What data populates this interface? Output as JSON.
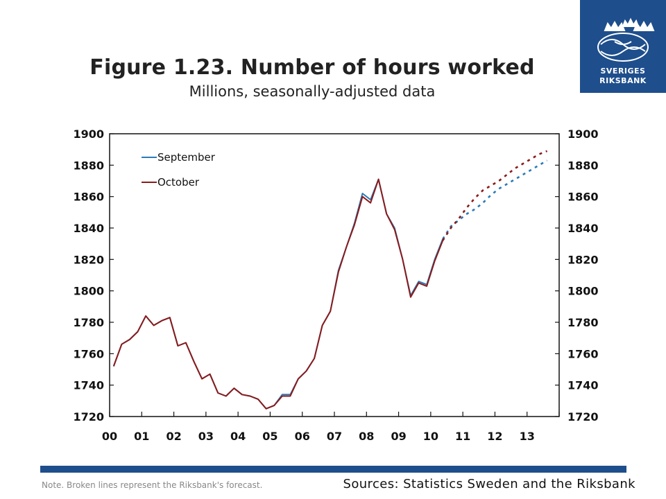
{
  "logo": {
    "text_line1": "SVERIGES",
    "text_line2": "RIKSBANK",
    "color": "#1e4e8c"
  },
  "title": "Figure 1.23.  Number of hours worked",
  "subtitle": "Millions, seasonally-adjusted data",
  "note": "Note. Broken lines represent the Riksbank's forecast.",
  "sources": "Sources: Statistics Sweden and the Riksbank",
  "chart_data": {
    "type": "line",
    "title": "Figure 1.23.  Number of hours worked",
    "subtitle": "Millions, seasonally-adjusted data",
    "ylim": [
      1720,
      1900
    ],
    "yticks": [
      1720,
      1740,
      1760,
      1780,
      1800,
      1820,
      1840,
      1860,
      1880,
      1900
    ],
    "xlim": [
      2000,
      2014
    ],
    "xticks": [
      {
        "value": 2000,
        "label": "00"
      },
      {
        "value": 2001,
        "label": "01"
      },
      {
        "value": 2002,
        "label": "02"
      },
      {
        "value": 2003,
        "label": "03"
      },
      {
        "value": 2004,
        "label": "04"
      },
      {
        "value": 2005,
        "label": "05"
      },
      {
        "value": 2006,
        "label": "06"
      },
      {
        "value": 2007,
        "label": "07"
      },
      {
        "value": 2008,
        "label": "08"
      },
      {
        "value": 2009,
        "label": "09"
      },
      {
        "value": 2010,
        "label": "10"
      },
      {
        "value": 2011,
        "label": "11"
      },
      {
        "value": 2012,
        "label": "12"
      },
      {
        "value": 2013,
        "label": "13"
      }
    ],
    "axes": "left and right, same scale",
    "legend_position": "top-left",
    "grid": false,
    "series": [
      {
        "name": "September",
        "color": "#2a7ab8",
        "x": [
          2000.125,
          2000.375,
          2000.625,
          2000.875,
          2001.125,
          2001.375,
          2001.625,
          2001.875,
          2002.125,
          2002.375,
          2002.625,
          2002.875,
          2003.125,
          2003.375,
          2003.625,
          2003.875,
          2004.125,
          2004.375,
          2004.625,
          2004.875,
          2005.125,
          2005.375,
          2005.625,
          2005.875,
          2006.125,
          2006.375,
          2006.625,
          2006.875,
          2007.125,
          2007.375,
          2007.625,
          2007.875,
          2008.125,
          2008.375,
          2008.625,
          2008.875,
          2009.125,
          2009.375,
          2009.625,
          2009.875,
          2010.125,
          2010.375
        ],
        "values": [
          1752,
          1766,
          1769,
          1774,
          1784,
          1778,
          1781,
          1783,
          1765,
          1767,
          1755,
          1744,
          1747,
          1735,
          1733,
          1738,
          1734,
          1733,
          1731,
          1725,
          1727,
          1734,
          1734,
          1744,
          1749,
          1757,
          1778,
          1787,
          1813,
          1828,
          1843,
          1862,
          1858,
          1871,
          1849,
          1840,
          1820,
          1797,
          1806,
          1804,
          1820,
          1833
        ],
        "forecast_x": [
          2010.375,
          2010.625,
          2010.875,
          2011.125,
          2011.375,
          2011.625,
          2011.875,
          2012.125,
          2012.375,
          2012.625,
          2012.875,
          2013.125,
          2013.375,
          2013.625
        ],
        "forecast_values": [
          1833,
          1841,
          1845,
          1849,
          1852,
          1856,
          1861,
          1865,
          1868,
          1871,
          1874,
          1877,
          1880,
          1883
        ]
      },
      {
        "name": "October",
        "color": "#8b1a1a",
        "x": [
          2000.125,
          2000.375,
          2000.625,
          2000.875,
          2001.125,
          2001.375,
          2001.625,
          2001.875,
          2002.125,
          2002.375,
          2002.625,
          2002.875,
          2003.125,
          2003.375,
          2003.625,
          2003.875,
          2004.125,
          2004.375,
          2004.625,
          2004.875,
          2005.125,
          2005.375,
          2005.625,
          2005.875,
          2006.125,
          2006.375,
          2006.625,
          2006.875,
          2007.125,
          2007.375,
          2007.625,
          2007.875,
          2008.125,
          2008.375,
          2008.625,
          2008.875,
          2009.125,
          2009.375,
          2009.625,
          2009.875,
          2010.125,
          2010.375
        ],
        "values": [
          1752,
          1766,
          1769,
          1774,
          1784,
          1778,
          1781,
          1783,
          1765,
          1767,
          1755,
          1744,
          1747,
          1735,
          1733,
          1738,
          1734,
          1733,
          1731,
          1725,
          1727,
          1733,
          1733,
          1744,
          1749,
          1757,
          1778,
          1787,
          1812,
          1828,
          1842,
          1860,
          1856,
          1871,
          1849,
          1839,
          1820,
          1796,
          1805,
          1803,
          1819,
          1832
        ],
        "forecast_x": [
          2010.375,
          2010.625,
          2010.875,
          2011.125,
          2011.375,
          2011.625,
          2011.875,
          2012.125,
          2012.375,
          2012.625,
          2012.875,
          2013.125,
          2013.375,
          2013.625
        ],
        "forecast_values": [
          1832,
          1840,
          1846,
          1853,
          1859,
          1864,
          1867,
          1870,
          1874,
          1878,
          1881,
          1884,
          1887,
          1889
        ]
      }
    ]
  }
}
